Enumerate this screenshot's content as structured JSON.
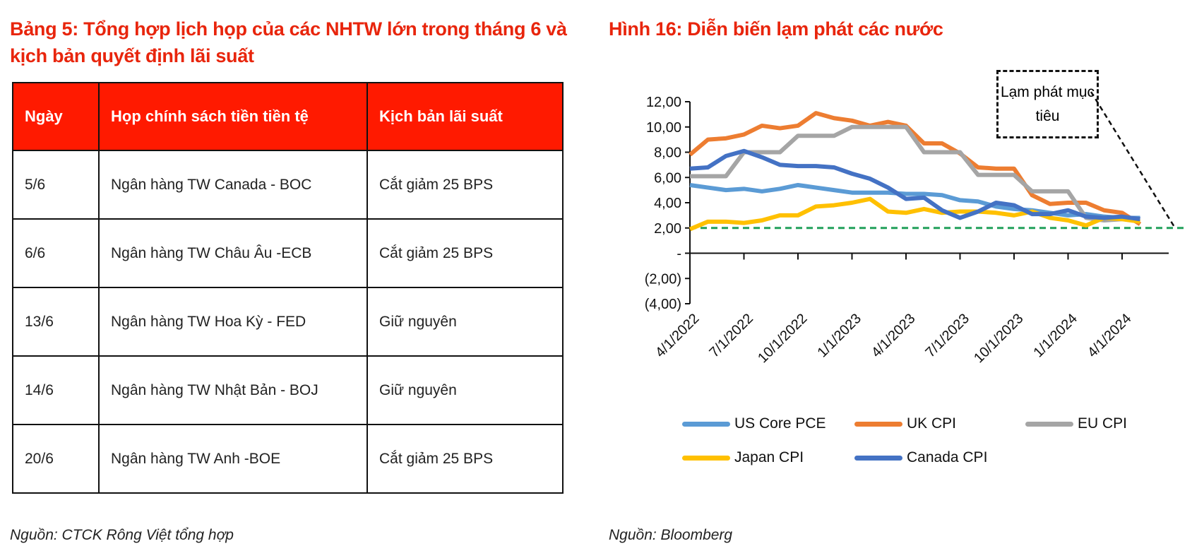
{
  "table_title": "Bảng 5: Tổng hợp lịch họp của các NHTW lớn trong tháng 6 và kịch bản quyết định lãi suất",
  "table": {
    "headers": [
      "Ngày",
      "Họp chính sách tiền tiền tệ",
      "Kịch bản lãi suất"
    ],
    "rows": [
      [
        "5/6",
        "Ngân hàng TW Canada - BOC",
        "Cắt giảm 25 BPS"
      ],
      [
        "6/6",
        "Ngân hàng TW Châu Âu -ECB",
        "Cắt giảm 25 BPS"
      ],
      [
        "13/6",
        "Ngân hàng TW Hoa Kỳ - FED",
        "Giữ nguyên"
      ],
      [
        "14/6",
        "Ngân hàng TW Nhật Bản - BOJ",
        "Giữ nguyên"
      ],
      [
        "20/6",
        "Ngân hàng TW Anh -BOE",
        "Cắt giảm 25 BPS"
      ]
    ],
    "header_color": "#ff1a00"
  },
  "table_source": "Nguồn: CTCK Rông Việt tổng hợp",
  "figure_title": "Hình 16: Diễn biến lạm phát các nước",
  "figure_source": "Nguồn: Bloomberg",
  "chart_data": {
    "type": "line",
    "x": [
      "3/2022",
      "4/2022",
      "5/2022",
      "6/2022",
      "7/2022",
      "8/2022",
      "9/2022",
      "10/2022",
      "11/2022",
      "12/2022",
      "1/2023",
      "2/2023",
      "3/2023",
      "4/2023",
      "5/2023",
      "6/2023",
      "7/2023",
      "8/2023",
      "9/2023",
      "10/2023",
      "11/2023",
      "12/2023",
      "1/2024",
      "2/2024",
      "3/2024",
      "4/2024"
    ],
    "x_tick_labels": [
      "4/1/2022",
      "7/1/2022",
      "10/1/2022",
      "1/1/2023",
      "4/1/2023",
      "7/1/2023",
      "10/1/2023",
      "1/1/2024",
      "4/1/2024"
    ],
    "y_tick_labels": [
      "12,00",
      "10,00",
      "8,00",
      "6,00",
      "4,00",
      "2,00",
      "-",
      "(2,00)",
      "(4,00)"
    ],
    "ylim": [
      -4,
      12
    ],
    "series": [
      {
        "name": "US Core PCE",
        "color": "#5b9bd5",
        "values": [
          5.4,
          5.2,
          5.0,
          5.1,
          4.9,
          5.1,
          5.4,
          5.2,
          5.0,
          4.8,
          4.8,
          4.8,
          4.7,
          4.7,
          4.6,
          4.2,
          4.1,
          3.7,
          3.5,
          3.4,
          3.2,
          3.0,
          3.1,
          2.9,
          2.8,
          2.8
        ]
      },
      {
        "name": "UK CPI",
        "color": "#ed7d31",
        "values": [
          7.8,
          9.0,
          9.1,
          9.4,
          10.1,
          9.9,
          10.1,
          11.1,
          10.7,
          10.5,
          10.1,
          10.4,
          10.1,
          8.7,
          8.7,
          7.9,
          6.8,
          6.7,
          6.7,
          4.6,
          3.9,
          4.0,
          4.0,
          3.4,
          3.2,
          2.3
        ]
      },
      {
        "name": "EU CPI",
        "color": "#a5a5a5",
        "values": [
          6.1,
          6.1,
          6.1,
          8.0,
          8.0,
          8.0,
          9.3,
          9.3,
          9.3,
          10.0,
          10.0,
          10.0,
          10.0,
          8.0,
          8.0,
          8.0,
          6.2,
          6.2,
          6.2,
          4.9,
          4.9,
          4.9,
          2.8,
          2.6,
          2.7,
          2.7
        ]
      },
      {
        "name": "Japan CPI",
        "color": "#ffc000",
        "values": [
          1.9,
          2.5,
          2.5,
          2.4,
          2.6,
          3.0,
          3.0,
          3.7,
          3.8,
          4.0,
          4.3,
          3.3,
          3.2,
          3.5,
          3.2,
          3.3,
          3.3,
          3.2,
          3.0,
          3.3,
          2.8,
          2.6,
          2.2,
          2.8,
          2.7,
          2.5
        ]
      },
      {
        "name": "Canada CPI",
        "color": "#4472c4",
        "values": [
          6.7,
          6.8,
          7.7,
          8.1,
          7.6,
          7.0,
          6.9,
          6.9,
          6.8,
          6.3,
          5.9,
          5.2,
          4.3,
          4.4,
          3.4,
          2.8,
          3.3,
          4.0,
          3.8,
          3.1,
          3.1,
          3.4,
          2.9,
          2.8,
          2.9,
          2.7
        ]
      }
    ],
    "target_line": {
      "value": 2.0,
      "color": "#22a05a",
      "style": "dashed"
    },
    "annotation": "Lạm phát mục tiêu",
    "legend_placement": "bottom",
    "grid": false
  }
}
